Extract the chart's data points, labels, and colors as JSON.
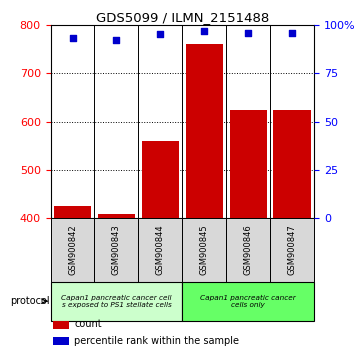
{
  "title": "GDS5099 / ILMN_2151488",
  "samples": [
    "GSM900842",
    "GSM900843",
    "GSM900844",
    "GSM900845",
    "GSM900846",
    "GSM900847"
  ],
  "bar_values": [
    425,
    410,
    560,
    760,
    625,
    625
  ],
  "percentile_values": [
    93,
    92,
    95,
    97,
    96,
    96
  ],
  "bar_color": "#cc0000",
  "dot_color": "#0000cc",
  "ylim_left": [
    400,
    800
  ],
  "ylim_right": [
    0,
    100
  ],
  "yticks_left": [
    400,
    500,
    600,
    700,
    800
  ],
  "yticks_right": [
    0,
    25,
    50,
    75,
    100
  ],
  "grid_values": [
    500,
    600,
    700
  ],
  "protocol_groups": [
    {
      "label": "Capan1 pancreatic cancer cell\ns exposed to PS1 stellate cells",
      "samples": [
        0,
        1,
        2
      ],
      "color": "#ccffcc"
    },
    {
      "label": "Capan1 pancreatic cancer\ncells only",
      "samples": [
        3,
        4,
        5
      ],
      "color": "#66ff66"
    }
  ],
  "legend_items": [
    {
      "color": "#cc0000",
      "label": "count"
    },
    {
      "color": "#0000cc",
      "label": "percentile rank within the sample"
    }
  ],
  "protocol_label": "protocol",
  "sample_bg": "#d8d8d8",
  "plot_bg": "#ffffff"
}
